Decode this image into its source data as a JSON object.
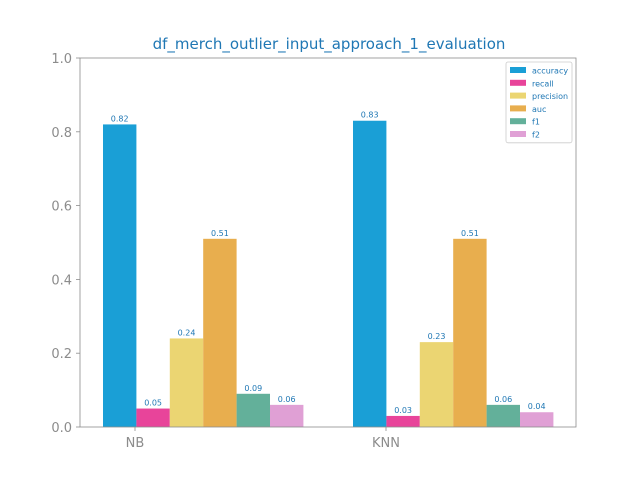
{
  "chart_data": {
    "type": "bar",
    "title": "df_merch_outlier_input_approach_1_evaluation",
    "xlabel": "",
    "ylabel": "",
    "categories": [
      "NB",
      "KNN"
    ],
    "ylim": [
      0,
      1.0
    ],
    "yticks": [
      "0.0",
      "0.2",
      "0.4",
      "0.6",
      "0.8",
      "1.0"
    ],
    "grid": false,
    "legend_position": "top-right",
    "series": [
      {
        "name": "accuracy",
        "color": "#1a9fd6",
        "values": [
          0.82,
          0.83
        ],
        "labels": [
          "0.82",
          "0.83"
        ]
      },
      {
        "name": "recall",
        "color": "#e8449a",
        "values": [
          0.05,
          0.03
        ],
        "labels": [
          "0.05",
          "0.03"
        ]
      },
      {
        "name": "precision",
        "color": "#ebd572",
        "values": [
          0.24,
          0.23
        ],
        "labels": [
          "0.24",
          "0.23"
        ]
      },
      {
        "name": "auc",
        "color": "#e8ae4e",
        "values": [
          0.51,
          0.51
        ],
        "labels": [
          "0.51",
          "0.51"
        ]
      },
      {
        "name": "f1",
        "color": "#63b09a",
        "values": [
          0.09,
          0.06
        ],
        "labels": [
          "0.09",
          "0.06"
        ]
      },
      {
        "name": "f2",
        "color": "#e0a0d5",
        "values": [
          0.06,
          0.04
        ],
        "labels": [
          "0.06",
          "0.04"
        ]
      }
    ]
  }
}
